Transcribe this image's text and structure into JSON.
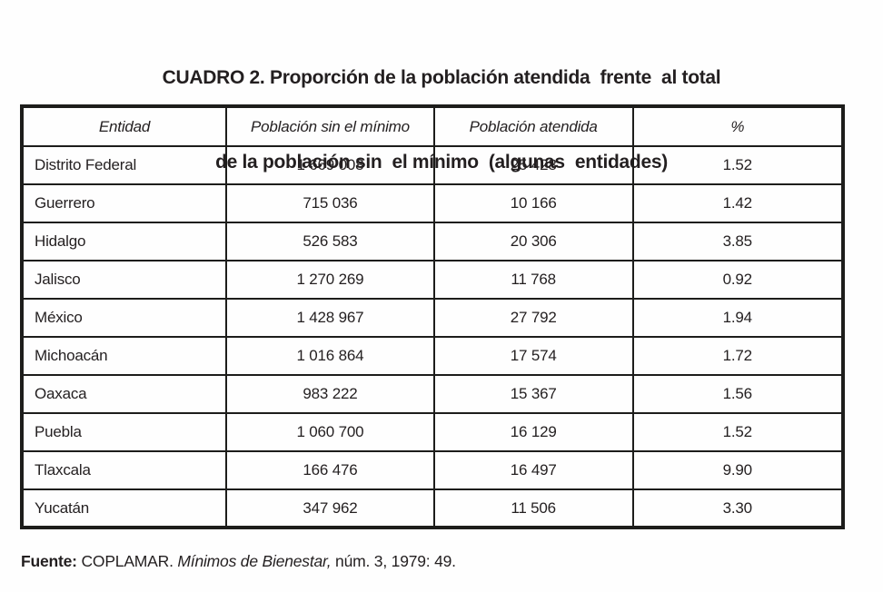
{
  "title": {
    "line1": "CUADRO 2. Proporción de la población atendida  frente  al total",
    "line2": "de la población sin  el mínimo  (algunas  entidades)"
  },
  "table": {
    "columns": [
      "Entidad",
      "Población sin el mínimo",
      "Población atendida",
      "%"
    ],
    "rows": [
      {
        "entidad": "Distrito Federal",
        "sin_minimo": "1 669 008",
        "atendida": "25 428",
        "pct": "1.52"
      },
      {
        "entidad": "Guerrero",
        "sin_minimo": "715 036",
        "atendida": "10 166",
        "pct": "1.42"
      },
      {
        "entidad": "Hidalgo",
        "sin_minimo": "526 583",
        "atendida": "20 306",
        "pct": "3.85"
      },
      {
        "entidad": "Jalisco",
        "sin_minimo": "1 270 269",
        "atendida": "11 768",
        "pct": "0.92"
      },
      {
        "entidad": "México",
        "sin_minimo": "1 428 967",
        "atendida": "27 792",
        "pct": "1.94"
      },
      {
        "entidad": "Michoacán",
        "sin_minimo": "1 016 864",
        "atendida": "17 574",
        "pct": "1.72"
      },
      {
        "entidad": "Oaxaca",
        "sin_minimo": "983 222",
        "atendida": "15 367",
        "pct": "1.56"
      },
      {
        "entidad": "Puebla",
        "sin_minimo": "1 060 700",
        "atendida": "16 129",
        "pct": "1.52"
      },
      {
        "entidad": "Tlaxcala",
        "sin_minimo": "166 476",
        "atendida": "16 497",
        "pct": "9.90"
      },
      {
        "entidad": "Yucatán",
        "sin_minimo": "347 962",
        "atendida": "11 506",
        "pct": "3.30"
      }
    ]
  },
  "source": {
    "label": "Fuente:",
    "publisher": "COPLAMAR.",
    "work_title": "Mínimos de Bienestar,",
    "reference": "núm. 3, 1979: 49."
  },
  "colors": {
    "text": "#231f20",
    "border": "#1d1d1b",
    "background": "#fefefe"
  }
}
